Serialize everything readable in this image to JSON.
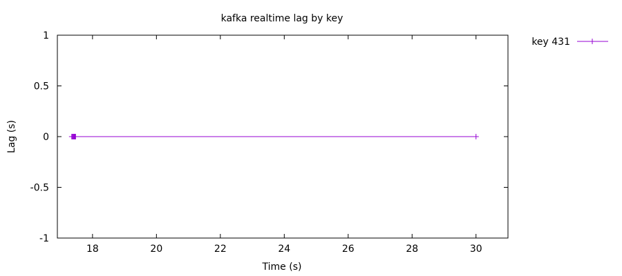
{
  "chart_data": {
    "type": "line",
    "title": "kafka realtime lag by key",
    "xlabel": "Time (s)",
    "ylabel": "Lag (s)",
    "xlim": [
      16.9,
      31.0
    ],
    "ylim": [
      -1,
      1
    ],
    "xticks": [
      18,
      20,
      22,
      24,
      26,
      28,
      30
    ],
    "yticks": [
      -1,
      -0.5,
      0,
      0.5,
      1
    ],
    "ytick_labels": [
      "-1",
      "-0.5",
      "0",
      "0.5",
      "1"
    ],
    "grid": false,
    "legend_position": "top-right-outside",
    "series": [
      {
        "name": "key 431",
        "color": "#9400d3",
        "marker": "plus",
        "x": [
          17.35,
          17.37,
          17.39,
          17.41,
          17.43,
          17.45,
          17.47,
          30.0
        ],
        "y": [
          0,
          0,
          0,
          0,
          0,
          0,
          0,
          0
        ]
      }
    ]
  }
}
